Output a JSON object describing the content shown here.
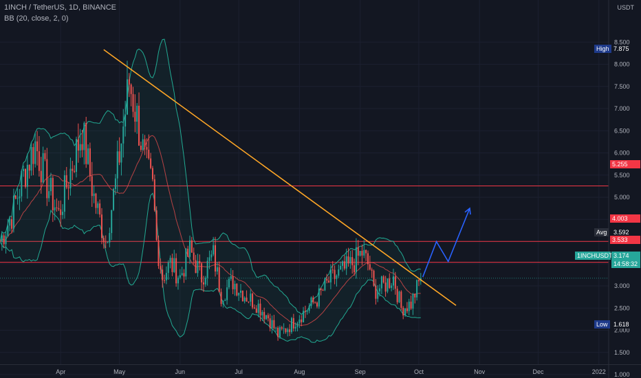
{
  "header": {
    "title": "1INCH / TetherUS, 1D, BINANCE",
    "indicator": "BB (20, close, 2, 0)"
  },
  "price_axis": {
    "currency": "USDT"
  },
  "colors": {
    "background": "#131722",
    "up": "#26a69a",
    "down": "#ef5350",
    "trendline": "#ffa726",
    "level": "#f23645",
    "projection": "#2962ff",
    "bb_band": "#22ab94",
    "bb_basis": "#e14b4b"
  },
  "tags": {
    "high_label": "High",
    "high_value": "7.875",
    "avg_label": "Avg",
    "avg_value": "3.592",
    "symbol_label": "1INCHUSDT",
    "symbol_value": "3.174",
    "countdown": "14:58:32",
    "low_label": "Low",
    "low_value": "1.618",
    "level_1": "5.255",
    "level_2": "4.003",
    "level_3": "3.533"
  },
  "chart_data": {
    "type": "candlestick",
    "title": "1INCH / TetherUS, 1D, BINANCE",
    "indicator": "BB (20, close, 2, 0)",
    "y_axis": {
      "ticks": [
        "8.500",
        "8.000",
        "7.500",
        "7.000",
        "6.500",
        "6.000",
        "5.500",
        "5.000",
        "4.500",
        "4.000",
        "3.500",
        "3.000",
        "2.500",
        "2.000",
        "1.500",
        "1.000"
      ],
      "range": [
        0.5,
        9.0
      ],
      "unit": "USDT"
    },
    "x_axis": {
      "ticks": [
        "Apr",
        "May",
        "Jun",
        "Jul",
        "Aug",
        "Sep",
        "Oct",
        "Nov",
        "Dec",
        "2022"
      ],
      "range": [
        "2021-03-01",
        "2022-01-06"
      ]
    },
    "horizontal_levels": [
      5.255,
      4.003,
      3.533
    ],
    "last_price": 3.174,
    "session_high": 7.875,
    "session_low": 1.618,
    "average": 3.592,
    "trendline": {
      "from": {
        "x": "2021-04-23",
        "y": 8.33
      },
      "to": {
        "x": "2021-10-20",
        "y": 2.56
      }
    },
    "projection": [
      {
        "x": "2021-10-03",
        "y": 3.2
      },
      {
        "x": "2021-10-10",
        "y": 4.0
      },
      {
        "x": "2021-10-16",
        "y": 3.55
      },
      {
        "x": "2021-10-27",
        "y": 4.75
      }
    ],
    "close_series": [
      {
        "x": "2021-03-01",
        "y": 4.0
      },
      {
        "x": "2021-03-07",
        "y": 4.6
      },
      {
        "x": "2021-03-13",
        "y": 5.5
      },
      {
        "x": "2021-03-19",
        "y": 6.2
      },
      {
        "x": "2021-03-25",
        "y": 5.3
      },
      {
        "x": "2021-03-31",
        "y": 4.6
      },
      {
        "x": "2021-04-06",
        "y": 5.6
      },
      {
        "x": "2021-04-12",
        "y": 6.5
      },
      {
        "x": "2021-04-18",
        "y": 5.0
      },
      {
        "x": "2021-04-24",
        "y": 4.0
      },
      {
        "x": "2021-04-29",
        "y": 5.3
      },
      {
        "x": "2021-05-03",
        "y": 6.6
      },
      {
        "x": "2021-05-06",
        "y": 7.6
      },
      {
        "x": "2021-05-10",
        "y": 6.8
      },
      {
        "x": "2021-05-14",
        "y": 5.8
      },
      {
        "x": "2021-05-18",
        "y": 5.2
      },
      {
        "x": "2021-05-20",
        "y": 4.0
      },
      {
        "x": "2021-05-23",
        "y": 3.2
      },
      {
        "x": "2021-05-27",
        "y": 3.5
      },
      {
        "x": "2021-06-01",
        "y": 3.2
      },
      {
        "x": "2021-06-06",
        "y": 3.8
      },
      {
        "x": "2021-06-12",
        "y": 3.2
      },
      {
        "x": "2021-06-18",
        "y": 3.7
      },
      {
        "x": "2021-06-22",
        "y": 2.8
      },
      {
        "x": "2021-06-28",
        "y": 3.1
      },
      {
        "x": "2021-07-04",
        "y": 2.8
      },
      {
        "x": "2021-07-10",
        "y": 2.6
      },
      {
        "x": "2021-07-16",
        "y": 2.3
      },
      {
        "x": "2021-07-21",
        "y": 1.9
      },
      {
        "x": "2021-07-27",
        "y": 2.1
      },
      {
        "x": "2021-08-03",
        "y": 2.4
      },
      {
        "x": "2021-08-10",
        "y": 2.7
      },
      {
        "x": "2021-08-16",
        "y": 3.1
      },
      {
        "x": "2021-08-22",
        "y": 3.3
      },
      {
        "x": "2021-08-28",
        "y": 3.5
      },
      {
        "x": "2021-09-02",
        "y": 3.75
      },
      {
        "x": "2021-09-06",
        "y": 3.4
      },
      {
        "x": "2021-09-08",
        "y": 2.9
      },
      {
        "x": "2021-09-13",
        "y": 3.0
      },
      {
        "x": "2021-09-18",
        "y": 3.2
      },
      {
        "x": "2021-09-22",
        "y": 2.5
      },
      {
        "x": "2021-09-27",
        "y": 2.6
      },
      {
        "x": "2021-10-02",
        "y": 3.17
      }
    ]
  }
}
